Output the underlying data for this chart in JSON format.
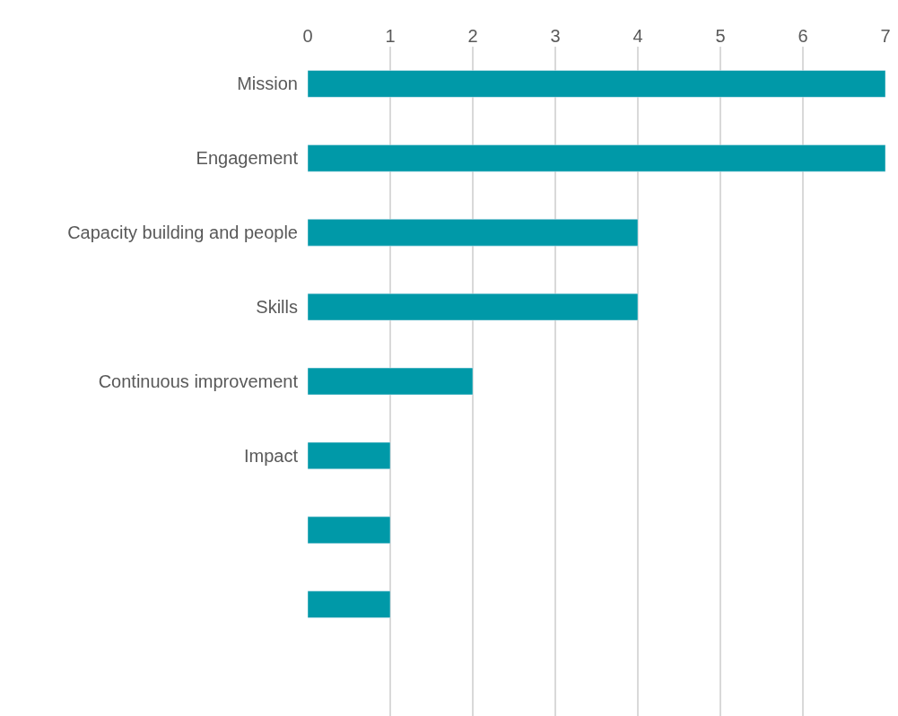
{
  "chart_data": {
    "type": "bar",
    "orientation": "horizontal",
    "categories": [
      "Mission",
      "Engagement",
      "Capacity building and people",
      "Skills",
      "Continuous improvement",
      "Impact",
      null,
      null,
      null
    ],
    "values": [
      7,
      7,
      4,
      4,
      2,
      1,
      1,
      1,
      null
    ],
    "color": "#0099a8",
    "xlim": [
      0,
      7
    ],
    "xticks": [
      0,
      1,
      2,
      3,
      4,
      5,
      6,
      7
    ],
    "grid": "x",
    "legend": false
  }
}
